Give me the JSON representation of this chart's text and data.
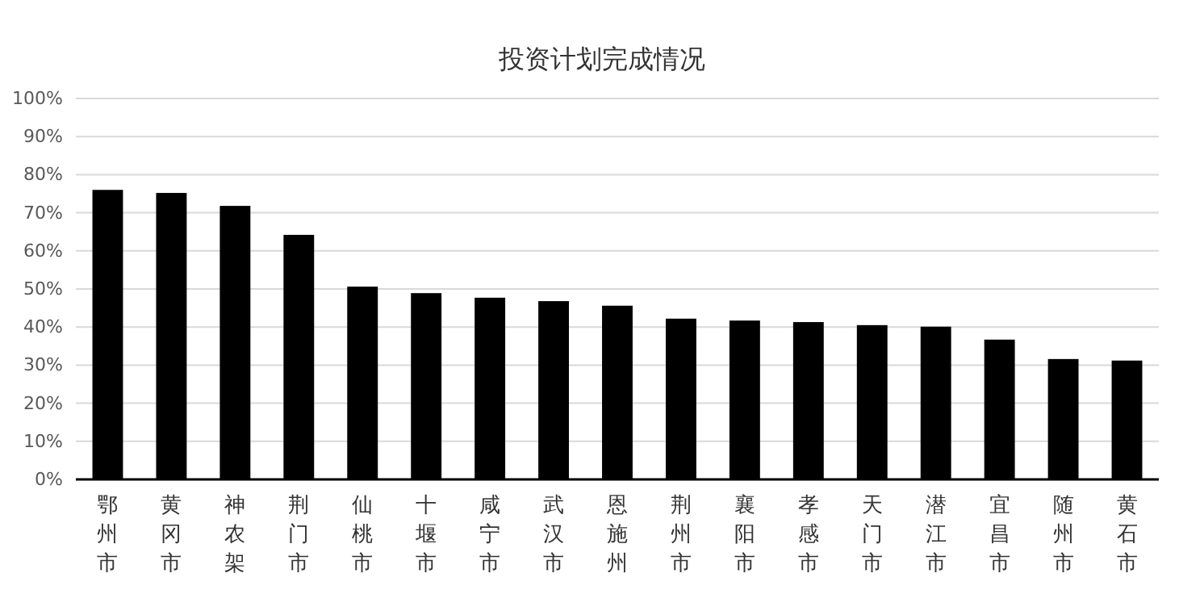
{
  "chart_data": {
    "type": "bar",
    "title": "投资计划完成情况",
    "categories": [
      "鄂州市",
      "黄冈市",
      "神农架",
      "荆门市",
      "仙桃市",
      "十堰市",
      "咸宁市",
      "武汉市",
      "恩施州",
      "荆州市",
      "襄阳市",
      "孝感市",
      "天门市",
      "潜江市",
      "宜昌市",
      "随州市",
      "黄石市"
    ],
    "values": [
      76,
      75.2,
      71.8,
      64.2,
      50.6,
      48.9,
      47.7,
      46.8,
      45.6,
      42.2,
      41.7,
      41.3,
      40.5,
      40.1,
      36.7,
      31.6,
      31.2
    ],
    "color": "#000000",
    "ylim": [
      0,
      100
    ],
    "yticks": [
      {
        "value": 0,
        "label": "0%"
      },
      {
        "value": 10,
        "label": "10%"
      },
      {
        "value": 20,
        "label": "20%"
      },
      {
        "value": 30,
        "label": "30%"
      },
      {
        "value": 40,
        "label": "40%"
      },
      {
        "value": 50,
        "label": "50%"
      },
      {
        "value": 60,
        "label": "60%"
      },
      {
        "value": 70,
        "label": "70%"
      },
      {
        "value": 80,
        "label": "80%"
      },
      {
        "value": 90,
        "label": "90%"
      },
      {
        "value": 100,
        "label": "100%"
      }
    ],
    "grid": "y"
  }
}
